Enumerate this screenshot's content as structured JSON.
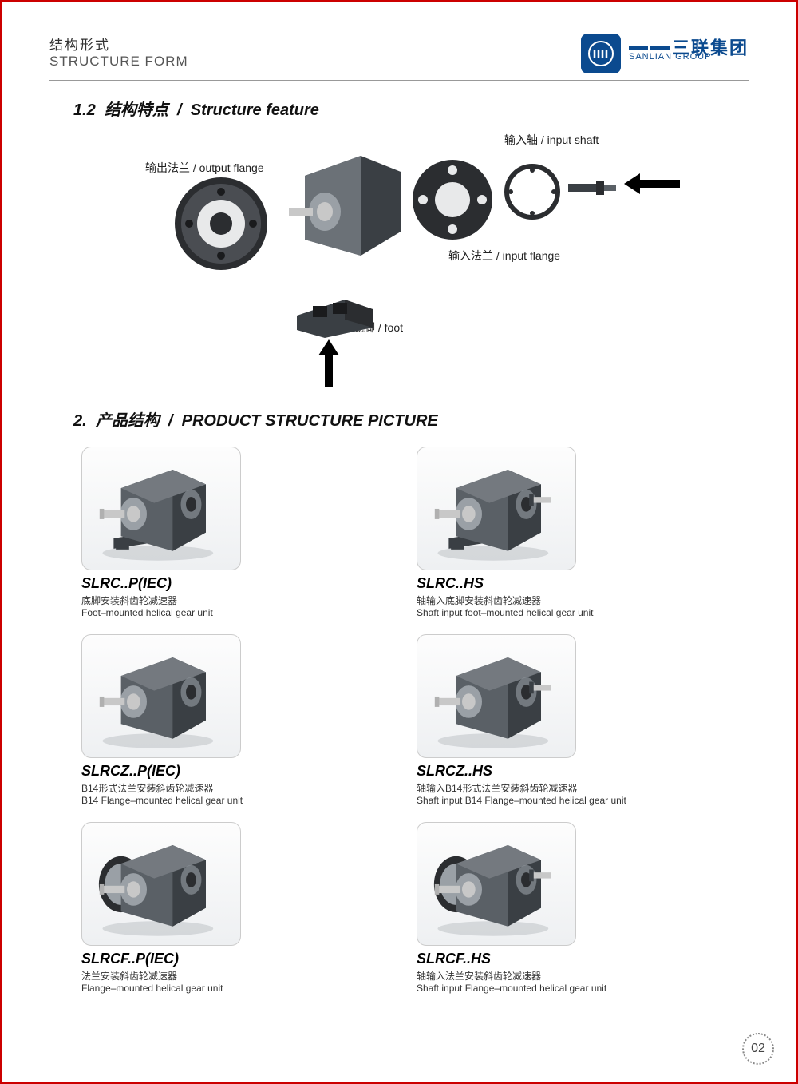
{
  "header": {
    "title_cn": "结构形式",
    "title_en": "STRUCTURE FORM",
    "logo": {
      "mark_text": "JIII",
      "company_cn": "三联集团",
      "company_en": "SANLIAN GROUP",
      "brand_color": "#0b4a8f"
    }
  },
  "section1": {
    "number": "1.2",
    "title_cn": "结构特点",
    "title_en": "Structure feature",
    "labels": {
      "output_flange_cn": "输出法兰",
      "output_flange_en": "output flange",
      "input_shaft_cn": "输入轴",
      "input_shaft_en": "input shaft",
      "input_flange_cn": "输入法兰",
      "input_flange_en": "input flange",
      "foot_cn": "底脚",
      "foot_en": "foot"
    }
  },
  "section2": {
    "number": "2.",
    "title_cn": "产品结构",
    "title_en": "PRODUCT STRUCTURE PICTURE"
  },
  "products": [
    {
      "model": "SLRC..P(IEC)",
      "desc_cn": "底脚安装斜齿轮减速器",
      "desc_en": "Foot–mounted helical gear unit",
      "has_rear_shaft": false,
      "mount": "foot"
    },
    {
      "model": "SLRC..HS",
      "desc_cn": "轴输入底脚安装斜齿轮减速器",
      "desc_en": "Shaft input foot–mounted helical gear unit",
      "has_rear_shaft": true,
      "mount": "foot"
    },
    {
      "model": "SLRCZ..P(IEC)",
      "desc_cn": "B14形式法兰安装斜齿轮减速器",
      "desc_en": "B14 Flange–mounted helical gear unit",
      "has_rear_shaft": false,
      "mount": "none"
    },
    {
      "model": "SLRCZ..HS",
      "desc_cn": "轴输入B14形式法兰安装斜齿轮减速器",
      "desc_en": "Shaft input B14 Flange–mounted helical gear unit",
      "has_rear_shaft": true,
      "mount": "none"
    },
    {
      "model": "SLRCF..P(IEC)",
      "desc_cn": "法兰安装斜齿轮减速器",
      "desc_en": "Flange–mounted helical gear unit",
      "has_rear_shaft": false,
      "mount": "flange"
    },
    {
      "model": "SLRCF..HS",
      "desc_cn": "轴输入法兰安装斜齿轮减速器",
      "desc_en": "Shaft input Flange–mounted helical gear unit",
      "has_rear_shaft": true,
      "mount": "flange"
    }
  ],
  "page_number": "02",
  "colors": {
    "border": "#c00",
    "gearbox_body": "#5a6066",
    "gearbox_dark": "#3a3f44",
    "gearbox_light": "#9aa0a6",
    "flange_dark": "#2b2d30",
    "shaft": "#c8c8c8",
    "shadow": "#b9bdc1"
  }
}
